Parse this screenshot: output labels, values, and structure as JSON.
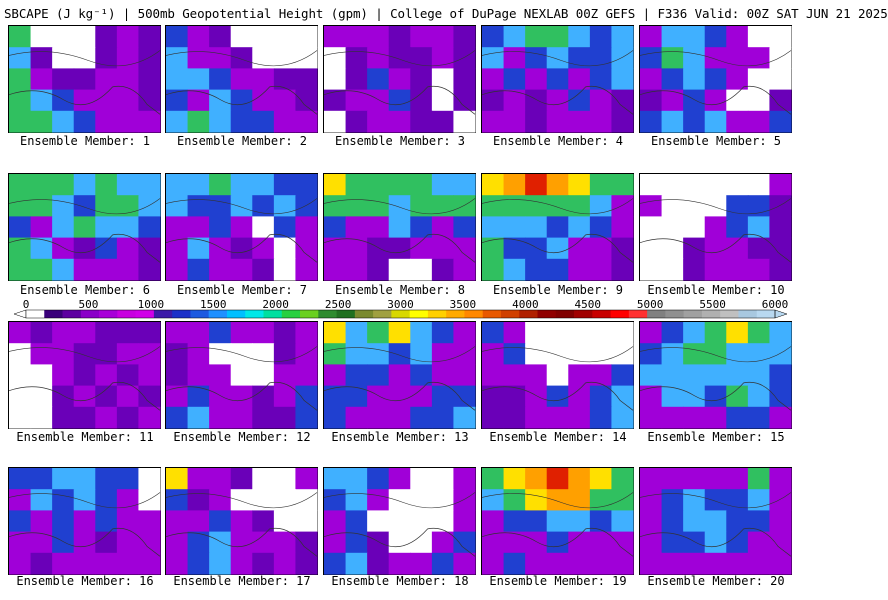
{
  "header": {
    "title": "SBCAPE (J kg⁻¹) | 500mb Geopotential Height (gpm) | College of DuPage NEXLAB 00Z GEFS | F336 Valid: 00Z SAT JUN 21 2025"
  },
  "colorbar": {
    "ticks": [
      "0",
      "500",
      "1000",
      "1500",
      "2000",
      "2500",
      "3000",
      "3500",
      "4000",
      "4500",
      "5000",
      "5500",
      "6000"
    ],
    "colors": [
      "#ffffff",
      "#3a007a",
      "#5d00a0",
      "#8a00c8",
      "#a800d8",
      "#c800e0",
      "#d000e8",
      "#3c1aa8",
      "#1c30c8",
      "#1c5ae0",
      "#1e90ff",
      "#00c0ff",
      "#00e8e8",
      "#00e0a0",
      "#28d040",
      "#6ad020",
      "#2e8b2e",
      "#207020",
      "#7a8a2e",
      "#a0a040",
      "#d8d800",
      "#ffff00",
      "#ffd000",
      "#ffaa00",
      "#ff8800",
      "#e85800",
      "#d04000",
      "#b02000",
      "#900000",
      "#800000",
      "#a00000",
      "#c80000",
      "#ff0000",
      "#ff3030",
      "#808080",
      "#909090",
      "#a0a0a0",
      "#b0b0b0",
      "#c0c0c0",
      "#a8c8e0",
      "#b8d8f0"
    ],
    "under_color": "#ffffff",
    "over_color": "#b8d8f0"
  },
  "palette": {
    "white": "#ffffff",
    "purple": "#a000d8",
    "magenta": "#d000e8",
    "violet": "#6a00b8",
    "blue": "#2040d0",
    "lightblue": "#40b0ff",
    "cyan": "#00e0e0",
    "green": "#30c060",
    "olive": "#60a040",
    "yellow": "#ffe000",
    "orange": "#ffa000",
    "red": "#e02000",
    "contour": "#333333"
  },
  "members": [
    {
      "label": "Ensemble Member: 1",
      "cape": [
        [
          0.6,
          0,
          0,
          0,
          0.2,
          0.3,
          0.2
        ],
        [
          0.5,
          0.1,
          0,
          0,
          0.2,
          0.3,
          0.2
        ],
        [
          0.6,
          0.3,
          0.2,
          0.2,
          0.3,
          0.3,
          0.2
        ],
        [
          0.6,
          0.5,
          0.4,
          0.3,
          0.3,
          0.3,
          0.2
        ],
        [
          0.6,
          0.6,
          0.5,
          0.4,
          0.3,
          0.3,
          0.3
        ]
      ]
    },
    {
      "label": "Ensemble Member: 2",
      "cape": [
        [
          0.4,
          0.3,
          0.2,
          0,
          0,
          0,
          0
        ],
        [
          0.5,
          0.3,
          0.3,
          0.2,
          0,
          0,
          0
        ],
        [
          0.5,
          0.5,
          0.4,
          0.3,
          0.3,
          0.2,
          0.2
        ],
        [
          0.4,
          0.3,
          0.5,
          0.4,
          0.3,
          0.3,
          0.2
        ],
        [
          0.5,
          0.6,
          0.5,
          0.4,
          0.4,
          0.3,
          0.3
        ]
      ]
    },
    {
      "label": "Ensemble Member: 3",
      "cape": [
        [
          0.3,
          0.3,
          0.3,
          0.2,
          0.3,
          0.3,
          0.2
        ],
        [
          0,
          0.2,
          0.3,
          0.2,
          0.2,
          0.3,
          0.2
        ],
        [
          0,
          0.2,
          0.4,
          0.3,
          0.2,
          0,
          0.2
        ],
        [
          0.2,
          0.3,
          0.3,
          0.4,
          0.2,
          0,
          0.2
        ],
        [
          0,
          0.2,
          0.3,
          0.3,
          0.2,
          0.2,
          0
        ]
      ]
    },
    {
      "label": "Ensemble Member: 4",
      "cape": [
        [
          0.4,
          0.5,
          0.6,
          0.6,
          0.5,
          0.4,
          0.5
        ],
        [
          0.5,
          0.3,
          0.4,
          0.5,
          0.4,
          0.4,
          0.5
        ],
        [
          0.3,
          0.4,
          0.3,
          0.4,
          0.3,
          0.4,
          0.5
        ],
        [
          0.2,
          0.3,
          0.2,
          0.3,
          0.4,
          0.3,
          0.2
        ],
        [
          0.3,
          0.3,
          0.2,
          0.3,
          0.3,
          0.3,
          0.2
        ]
      ]
    },
    {
      "label": "Ensemble Member: 5",
      "cape": [
        [
          0.3,
          0.5,
          0.5,
          0.4,
          0.3,
          0,
          0
        ],
        [
          0.4,
          0.6,
          0.5,
          0.3,
          0.3,
          0.3,
          0
        ],
        [
          0.3,
          0.4,
          0.5,
          0.4,
          0.3,
          0,
          0
        ],
        [
          0.2,
          0.3,
          0.4,
          0.3,
          0,
          0,
          0.2
        ],
        [
          0.4,
          0.5,
          0.4,
          0.5,
          0.3,
          0.3,
          0.4
        ]
      ]
    },
    {
      "label": "Ensemble Member: 6",
      "cape": [
        [
          0.6,
          0.6,
          0.6,
          0.5,
          0.6,
          0.5,
          0.5
        ],
        [
          0.6,
          0.6,
          0.5,
          0.4,
          0.6,
          0.6,
          0.5
        ],
        [
          0.4,
          0.3,
          0.5,
          0.6,
          0.5,
          0.5,
          0.4
        ],
        [
          0.6,
          0.5,
          0.3,
          0.2,
          0.4,
          0.3,
          0.2
        ],
        [
          0.6,
          0.6,
          0.5,
          0.3,
          0.3,
          0.3,
          0.2
        ]
      ]
    },
    {
      "label": "Ensemble Member: 7",
      "cape": [
        [
          0.5,
          0.5,
          0.6,
          0.5,
          0.5,
          0.4,
          0.4
        ],
        [
          0.5,
          0.4,
          0.4,
          0.5,
          0.4,
          0.5,
          0.4
        ],
        [
          0.3,
          0.3,
          0.4,
          0.3,
          0,
          0.4,
          0.3
        ],
        [
          0.3,
          0.5,
          0.3,
          0.2,
          0.3,
          0,
          0.3
        ],
        [
          0.3,
          0.4,
          0.3,
          0.3,
          0.2,
          0,
          0.3
        ]
      ]
    },
    {
      "label": "Ensemble Member: 8",
      "cape": [
        [
          0.7,
          0.6,
          0.6,
          0.6,
          0.6,
          0.5,
          0.5
        ],
        [
          0.6,
          0.6,
          0.6,
          0.5,
          0.6,
          0.6,
          0.6
        ],
        [
          0.4,
          0.3,
          0.3,
          0.5,
          0.4,
          0.3,
          0.4
        ],
        [
          0.3,
          0.3,
          0.2,
          0.2,
          0.3,
          0.3,
          0.3
        ],
        [
          0.3,
          0.3,
          0.2,
          0,
          0,
          0.2,
          0.3
        ]
      ]
    },
    {
      "label": "Ensemble Member: 9",
      "cape": [
        [
          0.7,
          0.8,
          0.9,
          0.8,
          0.7,
          0.6,
          0.6
        ],
        [
          0.6,
          0.6,
          0.6,
          0.6,
          0.6,
          0.5,
          0.3
        ],
        [
          0.5,
          0.5,
          0.5,
          0.4,
          0.5,
          0.4,
          0.3
        ],
        [
          0.6,
          0.4,
          0.4,
          0.5,
          0.3,
          0.3,
          0.2
        ],
        [
          0.6,
          0.5,
          0.4,
          0.4,
          0.3,
          0.3,
          0.2
        ]
      ]
    },
    {
      "label": "Ensemble Member: 10",
      "cape": [
        [
          0,
          0,
          0,
          0,
          0,
          0,
          0.3
        ],
        [
          0.3,
          0,
          0,
          0,
          0.4,
          0.4,
          0.2
        ],
        [
          0,
          0,
          0,
          0.3,
          0.4,
          0.5,
          0.2
        ],
        [
          0,
          0,
          0.2,
          0.3,
          0.3,
          0.2,
          0.2
        ],
        [
          0,
          0,
          0.2,
          0.3,
          0.3,
          0.3,
          0.2
        ]
      ]
    },
    {
      "label": "Ensemble Member: 11",
      "cape": [
        [
          0.3,
          0.2,
          0.3,
          0.3,
          0.2,
          0.2,
          0.2
        ],
        [
          0,
          0.3,
          0.3,
          0.2,
          0.2,
          0.3,
          0.3
        ],
        [
          0,
          0,
          0.3,
          0.2,
          0.3,
          0.2,
          0.3
        ],
        [
          0,
          0,
          0.2,
          0.3,
          0.2,
          0.3,
          0.2
        ],
        [
          0,
          0,
          0.2,
          0.2,
          0.3,
          0.2,
          0.3
        ]
      ]
    },
    {
      "label": "Ensemble Member: 12",
      "cape": [
        [
          0.3,
          0.3,
          0.4,
          0.3,
          0.3,
          0.2,
          0.3
        ],
        [
          0.2,
          0.3,
          0,
          0,
          0,
          0.2,
          0.3
        ],
        [
          0.2,
          0.3,
          0.3,
          0,
          0,
          0.3,
          0.3
        ],
        [
          0.3,
          0.4,
          0.3,
          0.3,
          0.2,
          0.3,
          0.4
        ],
        [
          0.4,
          0.5,
          0.3,
          0.3,
          0.2,
          0.2,
          0.4
        ]
      ]
    },
    {
      "label": "Ensemble Member: 13",
      "cape": [
        [
          0.7,
          0.5,
          0.6,
          0.7,
          0.5,
          0.4,
          0.3
        ],
        [
          0.6,
          0.5,
          0.5,
          0.4,
          0.5,
          0.3,
          0.3
        ],
        [
          0.3,
          0.4,
          0.4,
          0.3,
          0.4,
          0.3,
          0.3
        ],
        [
          0.4,
          0.4,
          0.3,
          0.3,
          0.3,
          0.4,
          0.4
        ],
        [
          0.4,
          0.3,
          0.3,
          0.3,
          0.4,
          0.4,
          0.5
        ]
      ]
    },
    {
      "label": "Ensemble Member: 14",
      "cape": [
        [
          0.4,
          0.3,
          0,
          0,
          0,
          0,
          0
        ],
        [
          0.3,
          0.4,
          0,
          0,
          0,
          0,
          0
        ],
        [
          0.3,
          0.3,
          0.3,
          0,
          0.3,
          0.3,
          0.4
        ],
        [
          0.2,
          0.2,
          0.3,
          0.4,
          0.3,
          0.4,
          0.5
        ],
        [
          0.2,
          0.2,
          0.3,
          0.3,
          0.3,
          0.4,
          0.5
        ]
      ]
    },
    {
      "label": "Ensemble Member: 15",
      "cape": [
        [
          0.3,
          0.4,
          0.5,
          0.6,
          0.7,
          0.6,
          0.5
        ],
        [
          0.4,
          0.5,
          0.6,
          0.6,
          0.5,
          0.5,
          0.5
        ],
        [
          0.5,
          0.5,
          0.5,
          0.5,
          0.5,
          0.5,
          0.4
        ],
        [
          0.3,
          0.5,
          0.5,
          0.4,
          0.6,
          0.5,
          0.4
        ],
        [
          0.3,
          0.3,
          0.3,
          0.3,
          0.4,
          0.4,
          0.3
        ]
      ]
    },
    {
      "label": "Ensemble Member: 16",
      "cape": [
        [
          0.4,
          0.4,
          0.5,
          0.5,
          0.4,
          0.4,
          0
        ],
        [
          0.3,
          0.5,
          0.4,
          0.5,
          0.4,
          0.3,
          0
        ],
        [
          0.4,
          0.3,
          0.4,
          0.3,
          0.4,
          0.3,
          0.3
        ],
        [
          0.3,
          0.3,
          0.4,
          0.3,
          0.2,
          0.3,
          0.3
        ],
        [
          0.3,
          0.2,
          0.3,
          0.3,
          0.3,
          0.3,
          0.3
        ]
      ]
    },
    {
      "label": "Ensemble Member: 17",
      "cape": [
        [
          0.7,
          0.3,
          0.3,
          0.2,
          0,
          0,
          0.3
        ],
        [
          0.4,
          0.2,
          0.3,
          0,
          0,
          0,
          0
        ],
        [
          0.3,
          0.3,
          0.4,
          0.3,
          0.2,
          0,
          0
        ],
        [
          0.3,
          0.4,
          0.5,
          0.3,
          0.3,
          0.3,
          0.2
        ],
        [
          0.3,
          0.4,
          0.5,
          0.3,
          0.2,
          0.3,
          0.2
        ]
      ]
    },
    {
      "label": "Ensemble Member: 18",
      "cape": [
        [
          0.5,
          0.5,
          0.4,
          0.3,
          0,
          0,
          0.3
        ],
        [
          0.4,
          0.5,
          0.3,
          0,
          0,
          0,
          0.3
        ],
        [
          0.3,
          0.4,
          0,
          0,
          0,
          0,
          0.3
        ],
        [
          0.3,
          0.4,
          0.2,
          0,
          0,
          0.3,
          0.4
        ],
        [
          0.4,
          0.5,
          0.2,
          0.3,
          0.3,
          0.4,
          0.3
        ]
      ]
    },
    {
      "label": "Ensemble Member: 19",
      "cape": [
        [
          0.6,
          0.7,
          0.8,
          0.9,
          0.8,
          0.7,
          0.6
        ],
        [
          0.5,
          0.6,
          0.7,
          0.8,
          0.8,
          0.6,
          0.6
        ],
        [
          0.3,
          0.4,
          0.4,
          0.5,
          0.5,
          0.4,
          0.5
        ],
        [
          0.3,
          0.3,
          0.3,
          0.4,
          0.3,
          0.3,
          0.3
        ],
        [
          0.3,
          0.4,
          0.3,
          0.3,
          0.3,
          0.3,
          0.3
        ]
      ]
    },
    {
      "label": "Ensemble Member: 20",
      "cape": [
        [
          0.3,
          0.3,
          0.3,
          0.3,
          0.3,
          0.6,
          0.3
        ],
        [
          0.3,
          0.4,
          0.5,
          0.4,
          0.4,
          0.5,
          0.3
        ],
        [
          0.3,
          0.4,
          0.5,
          0.5,
          0.4,
          0.4,
          0.3
        ],
        [
          0.3,
          0.4,
          0.4,
          0.5,
          0.4,
          0.3,
          0.3
        ],
        [
          0.3,
          0.3,
          0.3,
          0.3,
          0.3,
          0.3,
          0.3
        ]
      ]
    }
  ]
}
